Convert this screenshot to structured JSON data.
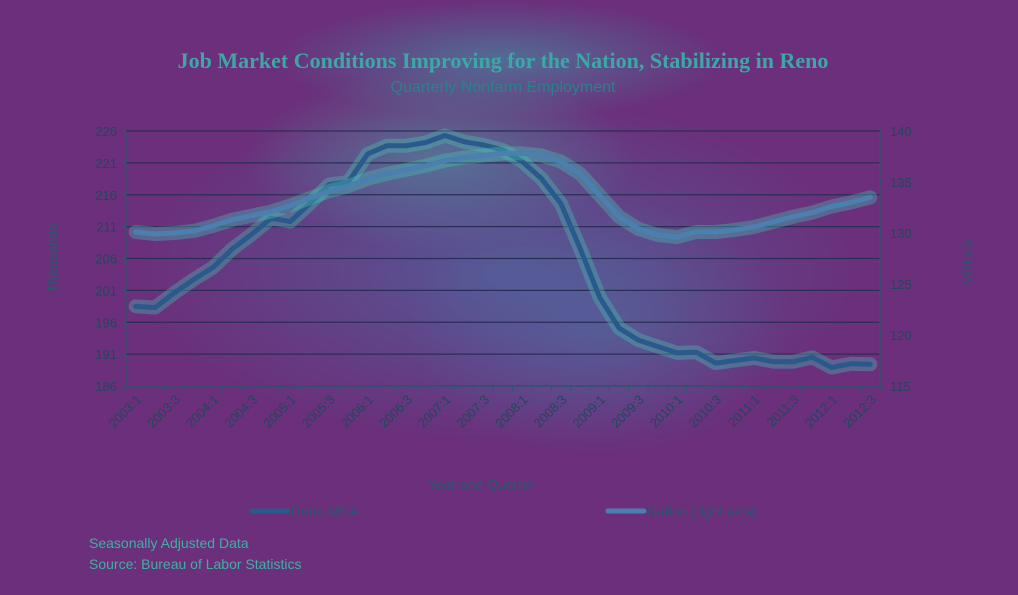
{
  "chart_data": {
    "type": "line",
    "title": "Job  Market Conditions Improving for the Nation, Stabilizing in Reno",
    "subtitle": "Quarterly Nonfarm Employment",
    "xlabel": "Year and Quarter",
    "ylabel_left": "Thousands",
    "ylabel_right": "Millions",
    "ylim_left": [
      186,
      226
    ],
    "ylim_right": [
      115,
      140
    ],
    "yticks_left": [
      "186",
      "191",
      "196",
      "201",
      "206",
      "211",
      "216",
      "221",
      "226"
    ],
    "yticks_right": [
      "115",
      "120",
      "125",
      "130",
      "135",
      "140"
    ],
    "x_tick_labels": [
      "2003:1",
      "2003:3",
      "2004:1",
      "2004:3",
      "2005:1",
      "2005:3",
      "2006:1",
      "2006:3",
      "2007:1",
      "2007:3",
      "2008:1",
      "2008:3",
      "2009:1",
      "2009:3",
      "2010:1",
      "2010:3",
      "2011:1",
      "2011:3",
      "2012:1",
      "2012:3"
    ],
    "x": [
      "2003:1",
      "2003:2",
      "2003:3",
      "2003:4",
      "2004:1",
      "2004:2",
      "2004:3",
      "2004:4",
      "2005:1",
      "2005:2",
      "2005:3",
      "2005:4",
      "2006:1",
      "2006:2",
      "2006:3",
      "2006:4",
      "2007:1",
      "2007:2",
      "2007:3",
      "2007:4",
      "2008:1",
      "2008:2",
      "2008:3",
      "2008:4",
      "2009:1",
      "2009:2",
      "2009:3",
      "2009:4",
      "2010:1",
      "2010:2",
      "2010:3",
      "2010:4",
      "2011:1",
      "2011:2",
      "2011:3",
      "2011:4",
      "2012:1",
      "2012:2",
      "2012:3"
    ],
    "grid": true,
    "legend_position": "bottom",
    "series": [
      {
        "name": "Reno MSA",
        "axis": "left",
        "color": "#2a5a8c",
        "values": [
          198.5,
          198.3,
          200.6,
          202.7,
          204.6,
          207.5,
          209.8,
          212.3,
          211.8,
          214.6,
          217.6,
          218.0,
          222.4,
          223.7,
          223.7,
          224.2,
          225.3,
          224.3,
          223.8,
          223.0,
          221.2,
          218.5,
          214.6,
          207.5,
          199.9,
          195.1,
          193.2,
          192.2,
          191.2,
          191.3,
          189.6,
          190.0,
          190.4,
          189.8,
          189.8,
          190.5,
          188.9,
          189.5,
          189.4
        ]
      },
      {
        "name": "Nation (right axis)",
        "axis": "right",
        "color": "#4a7fb0",
        "values": [
          130.1,
          129.9,
          130.0,
          130.2,
          130.7,
          131.3,
          131.7,
          132.1,
          132.7,
          133.4,
          134.1,
          134.6,
          135.3,
          135.8,
          136.2,
          136.6,
          137.1,
          137.4,
          137.6,
          137.8,
          137.8,
          137.6,
          137.0,
          135.8,
          133.7,
          131.6,
          130.4,
          129.8,
          129.6,
          130.1,
          130.1,
          130.3,
          130.6,
          131.1,
          131.6,
          132.0,
          132.6,
          133.0,
          133.5
        ]
      }
    ]
  },
  "notes": {
    "line1": "Seasonally Adjusted Data",
    "line2": "Source: Bureau of Labor  Statistics"
  },
  "colors": {
    "grid": "#2a2f55",
    "axis": "#2a5870"
  }
}
